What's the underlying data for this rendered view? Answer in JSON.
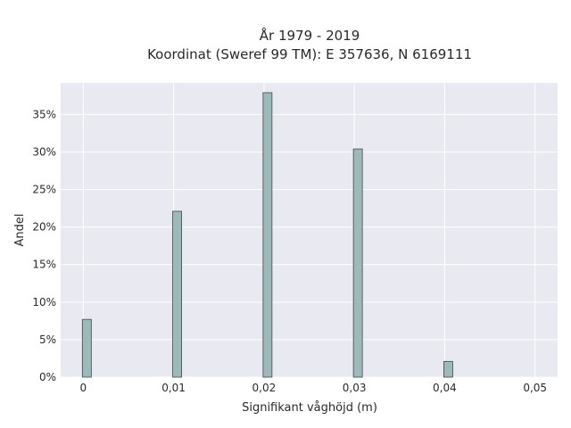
{
  "chart_data": {
    "type": "bar",
    "title_line1": "År 1979 - 2019",
    "title_line2": "Koordinat (Sweref 99 TM): E 357636, N 6169111",
    "xlabel": "Signifikant våghöjd (m)",
    "ylabel": "Andel",
    "x": [
      0,
      0.01,
      0.02,
      0.03,
      0.04
    ],
    "values": [
      7.7,
      22.1,
      37.9,
      30.4,
      2.1
    ],
    "x_ticks": [
      0,
      0.01,
      0.02,
      0.03,
      0.04,
      0.05
    ],
    "x_tick_labels": [
      "0",
      "0,01",
      "0,02",
      "0,03",
      "0,04",
      "0,05"
    ],
    "y_ticks": [
      0,
      5,
      10,
      15,
      20,
      25,
      30,
      35
    ],
    "y_tick_labels": [
      "0%",
      "5%",
      "10%",
      "15%",
      "20%",
      "25%",
      "30%",
      "35%"
    ],
    "xlim": [
      -0.0025,
      0.0525
    ],
    "ylim": [
      0,
      39.2
    ],
    "grid": true,
    "colors": {
      "bar_fill": "#9fb8b9",
      "bar_stroke": "#3c4a4a",
      "plot_bg": "#e9e9f1",
      "grid": "#ffffff"
    }
  }
}
